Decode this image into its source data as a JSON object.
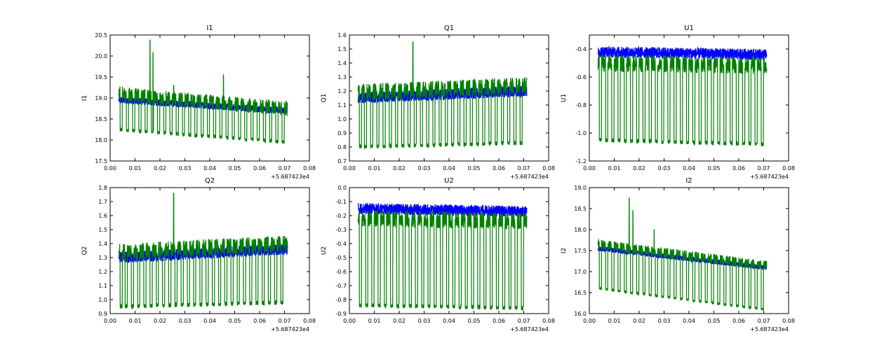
{
  "chart_data": [
    {
      "type": "line",
      "title": "I1",
      "xlabel": "",
      "ylabel": "I1",
      "x_offset_label": "+5.687423e4",
      "xlim": [
        0.0,
        0.08
      ],
      "ylim": [
        17.5,
        20.5
      ],
      "xticks": [
        "0.00",
        "0.01",
        "0.02",
        "0.03",
        "0.04",
        "0.05",
        "0.06",
        "0.07",
        "0.08"
      ],
      "yticks": [
        "17.5",
        "18.0",
        "18.5",
        "19.0",
        "19.5",
        "20.0",
        "20.5"
      ],
      "series": [
        {
          "name": "blue",
          "color": "#0000ff",
          "base": [
            [
              0.0035,
              18.95
            ],
            [
              0.07,
              18.7
            ]
          ],
          "noise": 0.08,
          "dips": []
        },
        {
          "name": "green",
          "color": "#008000",
          "base": [
            [
              0.0035,
              19.1
            ],
            [
              0.02,
              19.0
            ],
            [
              0.07,
              18.75
            ]
          ],
          "noise": 0.18,
          "dips": [
            0.004,
            0.0065,
            0.009,
            0.0115,
            0.014,
            0.0165,
            0.019,
            0.0215,
            0.024,
            0.0265,
            0.029,
            0.0315,
            0.034,
            0.0365,
            0.039,
            0.0415,
            0.044,
            0.0465,
            0.049,
            0.0515,
            0.054,
            0.0565,
            0.059,
            0.0615,
            0.064,
            0.0665,
            0.069
          ],
          "dip_low": [
            [
              0.0035,
              18.25
            ],
            [
              0.07,
              17.95
            ]
          ],
          "spikes": [
            [
              0.016,
              20.38
            ],
            [
              0.0172,
              20.08
            ],
            [
              0.0455,
              19.55
            ],
            [
              0.0255,
              19.3
            ]
          ]
        }
      ]
    },
    {
      "type": "line",
      "title": "Q1",
      "xlabel": "",
      "ylabel": "Q1",
      "x_offset_label": "+5.687423e4",
      "xlim": [
        0.0,
        0.08
      ],
      "ylim": [
        0.7,
        1.6
      ],
      "xticks": [
        "0.00",
        "0.01",
        "0.02",
        "0.03",
        "0.04",
        "0.05",
        "0.06",
        "0.07",
        "0.08"
      ],
      "yticks": [
        "0.7",
        "0.8",
        "0.9",
        "1.0",
        "1.1",
        "1.2",
        "1.3",
        "1.4",
        "1.5",
        "1.6"
      ],
      "series": [
        {
          "name": "blue",
          "color": "#0000ff",
          "base": [
            [
              0.0035,
              1.15
            ],
            [
              0.07,
              1.2
            ]
          ],
          "noise": 0.04,
          "dips": []
        },
        {
          "name": "green",
          "color": "#008000",
          "base": [
            [
              0.0035,
              1.19
            ],
            [
              0.07,
              1.24
            ]
          ],
          "noise": 0.06,
          "dips": [
            0.004,
            0.006,
            0.0085,
            0.011,
            0.0135,
            0.016,
            0.0185,
            0.021,
            0.0235,
            0.026,
            0.0285,
            0.031,
            0.0335,
            0.036,
            0.0385,
            0.041,
            0.0435,
            0.046,
            0.0485,
            0.051,
            0.0535,
            0.056,
            0.0585,
            0.061,
            0.0635,
            0.066,
            0.0685
          ],
          "dip_low": [
            [
              0.0035,
              0.8
            ],
            [
              0.07,
              0.83
            ]
          ],
          "spikes": [
            [
              0.0255,
              1.55
            ]
          ]
        }
      ]
    },
    {
      "type": "line",
      "title": "U1",
      "xlabel": "",
      "ylabel": "U1",
      "x_offset_label": "+5.687423e4",
      "xlim": [
        0.0,
        0.08
      ],
      "ylim": [
        -1.2,
        -0.3
      ],
      "xticks": [
        "0.00",
        "0.01",
        "0.02",
        "0.03",
        "0.04",
        "0.05",
        "0.06",
        "0.07",
        "0.08"
      ],
      "yticks": [
        "-1.2",
        "-1.0",
        "-0.8",
        "-0.6",
        "-0.4"
      ],
      "series": [
        {
          "name": "blue",
          "color": "#0000ff",
          "base": [
            [
              0.0035,
              -0.42
            ],
            [
              0.07,
              -0.44
            ]
          ],
          "noise": 0.04,
          "dips": []
        },
        {
          "name": "green",
          "color": "#008000",
          "base": [
            [
              0.0035,
              -0.5
            ],
            [
              0.07,
              -0.52
            ]
          ],
          "noise": 0.06,
          "dips": [
            0.004,
            0.0065,
            0.009,
            0.0115,
            0.014,
            0.0165,
            0.019,
            0.0215,
            0.024,
            0.0265,
            0.029,
            0.0315,
            0.034,
            0.0365,
            0.039,
            0.0415,
            0.044,
            0.0465,
            0.049,
            0.0515,
            0.054,
            0.0565,
            0.059,
            0.0615,
            0.064,
            0.0665,
            0.069
          ],
          "dip_low": [
            [
              0.0035,
              -1.05
            ],
            [
              0.07,
              -1.08
            ]
          ],
          "spikes": []
        }
      ]
    },
    {
      "type": "line",
      "title": "Q2",
      "xlabel": "",
      "ylabel": "Q2",
      "x_offset_label": "+5.687423e4",
      "xlim": [
        0.0,
        0.08
      ],
      "ylim": [
        0.9,
        1.8
      ],
      "xticks": [
        "0.00",
        "0.01",
        "0.02",
        "0.03",
        "0.04",
        "0.05",
        "0.06",
        "0.07",
        "0.08"
      ],
      "yticks": [
        "0.9",
        "1.0",
        "1.1",
        "1.2",
        "1.3",
        "1.4",
        "1.5",
        "1.6",
        "1.7",
        "1.8"
      ],
      "series": [
        {
          "name": "blue",
          "color": "#0000ff",
          "base": [
            [
              0.0035,
              1.3
            ],
            [
              0.07,
              1.36
            ]
          ],
          "noise": 0.04,
          "dips": []
        },
        {
          "name": "green",
          "color": "#008000",
          "base": [
            [
              0.0035,
              1.34
            ],
            [
              0.07,
              1.4
            ]
          ],
          "noise": 0.06,
          "dips": [
            0.004,
            0.006,
            0.0085,
            0.011,
            0.0135,
            0.016,
            0.0185,
            0.021,
            0.0235,
            0.026,
            0.0285,
            0.031,
            0.0335,
            0.036,
            0.0385,
            0.041,
            0.0435,
            0.046,
            0.0485,
            0.051,
            0.0535,
            0.056,
            0.0585,
            0.061,
            0.0635,
            0.066,
            0.0685
          ],
          "dip_low": [
            [
              0.0035,
              0.95
            ],
            [
              0.07,
              0.98
            ]
          ],
          "spikes": [
            [
              0.0255,
              1.76
            ]
          ]
        }
      ]
    },
    {
      "type": "line",
      "title": "U2",
      "xlabel": "",
      "ylabel": "U2",
      "x_offset_label": "+5.687423e4",
      "xlim": [
        0.0,
        0.08
      ],
      "ylim": [
        -0.9,
        0.0
      ],
      "xticks": [
        "0.00",
        "0.01",
        "0.02",
        "0.03",
        "0.04",
        "0.05",
        "0.06",
        "0.07",
        "0.08"
      ],
      "yticks": [
        "-0.9",
        "-0.8",
        "-0.7",
        "-0.6",
        "-0.5",
        "-0.4",
        "-0.3",
        "-0.2",
        "-0.1",
        "0.0"
      ],
      "series": [
        {
          "name": "blue",
          "color": "#0000ff",
          "base": [
            [
              0.0035,
              -0.15
            ],
            [
              0.07,
              -0.17
            ]
          ],
          "noise": 0.04,
          "dips": []
        },
        {
          "name": "green",
          "color": "#008000",
          "base": [
            [
              0.0035,
              -0.22
            ],
            [
              0.07,
              -0.24
            ]
          ],
          "noise": 0.06,
          "dips": [
            0.004,
            0.0065,
            0.009,
            0.0115,
            0.014,
            0.0165,
            0.019,
            0.0215,
            0.024,
            0.0265,
            0.029,
            0.0315,
            0.034,
            0.0365,
            0.039,
            0.0415,
            0.044,
            0.0465,
            0.049,
            0.0515,
            0.054,
            0.0565,
            0.059,
            0.0615,
            0.064,
            0.0665,
            0.069
          ],
          "dip_low": [
            [
              0.0035,
              -0.84
            ],
            [
              0.07,
              -0.86
            ]
          ],
          "spikes": []
        }
      ]
    },
    {
      "type": "line",
      "title": "I2",
      "xlabel": "",
      "ylabel": "I2",
      "x_offset_label": "+5.687423e4",
      "xlim": [
        0.0,
        0.08
      ],
      "ylim": [
        16.0,
        19.0
      ],
      "xticks": [
        "0.00",
        "0.01",
        "0.02",
        "0.03",
        "0.04",
        "0.05",
        "0.06",
        "0.07",
        "0.08"
      ],
      "yticks": [
        "16.0",
        "16.5",
        "17.0",
        "17.5",
        "18.0",
        "18.5",
        "19.0"
      ],
      "series": [
        {
          "name": "blue",
          "color": "#0000ff",
          "base": [
            [
              0.0035,
              17.55
            ],
            [
              0.07,
              17.1
            ]
          ],
          "noise": 0.06,
          "dips": []
        },
        {
          "name": "green",
          "color": "#008000",
          "base": [
            [
              0.0035,
              17.65
            ],
            [
              0.07,
              17.15
            ]
          ],
          "noise": 0.12,
          "dips": [
            0.004,
            0.0065,
            0.009,
            0.0115,
            0.014,
            0.0165,
            0.019,
            0.0215,
            0.024,
            0.0265,
            0.029,
            0.0315,
            0.034,
            0.0365,
            0.039,
            0.0415,
            0.044,
            0.0465,
            0.049,
            0.0515,
            0.054,
            0.0565,
            0.059,
            0.0615,
            0.064,
            0.0665,
            0.069
          ],
          "dip_low": [
            [
              0.0035,
              16.6
            ],
            [
              0.07,
              16.1
            ]
          ],
          "spikes": [
            [
              0.016,
              18.75
            ],
            [
              0.0175,
              18.45
            ],
            [
              0.026,
              18.0
            ]
          ]
        }
      ]
    }
  ]
}
